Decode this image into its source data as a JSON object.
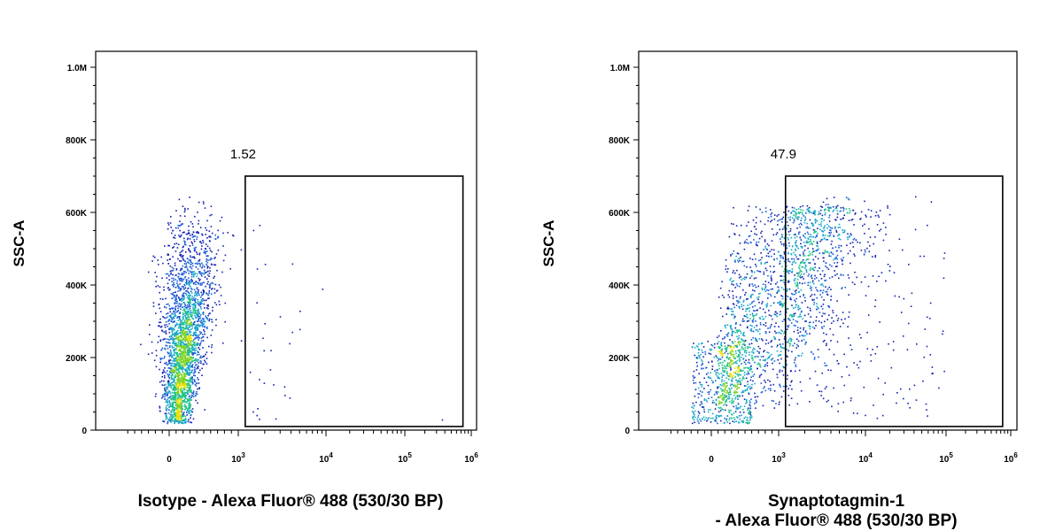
{
  "chart_data": [
    {
      "type": "scatter",
      "subtype": "flow-cytometry-density-dot-plot",
      "xlabel": "Isotype - Alexa Fluor® 488 (530/30 BP)",
      "xlabel_lines": [
        "Isotype - Alexa Fluor® 488 (530/30 BP)"
      ],
      "ylabel": "SSC-A",
      "x_scale": "biexponential",
      "xlim": [
        -600,
        1000000
      ],
      "ylim": [
        0,
        1000000
      ],
      "x_ticks": [
        {
          "value": 0,
          "base": "0",
          "exp": ""
        },
        {
          "value": 1000,
          "base": "10",
          "exp": "3"
        },
        {
          "value": 10000,
          "base": "10",
          "exp": "4"
        },
        {
          "value": 100000,
          "base": "10",
          "exp": "5"
        },
        {
          "value": 1000000,
          "base": "10",
          "exp": "6"
        }
      ],
      "y_ticks": [
        {
          "value": 0,
          "label": "0"
        },
        {
          "value": 200000,
          "label": "200K"
        },
        {
          "value": 400000,
          "label": "400K"
        },
        {
          "value": 600000,
          "label": "600K"
        },
        {
          "value": 800000,
          "label": "800K"
        },
        {
          "value": 1000000,
          "label": "1.0M"
        }
      ],
      "gate": {
        "label": "1.52",
        "x_min": 1200,
        "x_max": 750000,
        "y_min": 10000,
        "y_max": 700000
      },
      "population": {
        "main": {
          "x_center": 100,
          "x_spread": 180,
          "y_min": 20000,
          "y_max": 650000,
          "trend": "SSC rises with fluorescence",
          "count": 2600
        },
        "gated_sparse": {
          "x_range": [
            1000,
            5000
          ],
          "y_range": [
            30000,
            600000
          ],
          "count": 30
        }
      },
      "grid": false,
      "legend": "none"
    },
    {
      "type": "scatter",
      "subtype": "flow-cytometry-density-dot-plot",
      "xlabel": "Synaptotagmin-1 - Alexa Fluor® 488 (530/30 BP)",
      "xlabel_lines": [
        "Synaptotagmin-1",
        "- Alexa Fluor® 488 (530/30 BP)"
      ],
      "ylabel": "SSC-A",
      "x_scale": "biexponential",
      "xlim": [
        -600,
        1000000
      ],
      "ylim": [
        0,
        1000000
      ],
      "x_ticks": [
        {
          "value": 0,
          "base": "0",
          "exp": ""
        },
        {
          "value": 1000,
          "base": "10",
          "exp": "3"
        },
        {
          "value": 10000,
          "base": "10",
          "exp": "4"
        },
        {
          "value": 100000,
          "base": "10",
          "exp": "5"
        },
        {
          "value": 1000000,
          "base": "10",
          "exp": "6"
        }
      ],
      "y_ticks": [
        {
          "value": 0,
          "label": "0"
        },
        {
          "value": 200000,
          "label": "200K"
        },
        {
          "value": 400000,
          "label": "400K"
        },
        {
          "value": 600000,
          "label": "600K"
        },
        {
          "value": 800000,
          "label": "800K"
        },
        {
          "value": 1000000,
          "label": "1.0M"
        }
      ],
      "gate": {
        "label": "47.9",
        "x_min": 1200,
        "x_max": 750000,
        "y_min": 10000,
        "y_max": 700000
      },
      "population": {
        "main": {
          "x_center": 1500,
          "x_spread": 1200,
          "y_min": 20000,
          "y_max": 650000,
          "trend": "SSC rises with fluorescence",
          "count": 1800
        },
        "negative_cluster": {
          "x_range": [
            -300,
            600
          ],
          "y_range": [
            20000,
            250000
          ],
          "count": 400
        },
        "gated_tail": {
          "x_range": [
            3000,
            100000
          ],
          "y_range": [
            30000,
            650000
          ],
          "count": 200
        }
      },
      "grid": false,
      "legend": "none"
    }
  ]
}
